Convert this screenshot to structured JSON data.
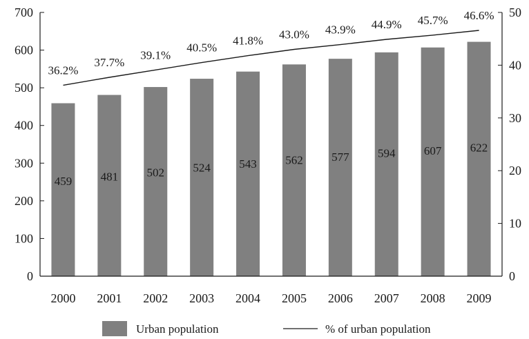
{
  "chart_data": {
    "type": "bar",
    "categories": [
      "2000",
      "2001",
      "2002",
      "2003",
      "2004",
      "2005",
      "2006",
      "2007",
      "2008",
      "2009"
    ],
    "series": [
      {
        "name": "Urban population",
        "type": "bar",
        "axis": "left",
        "values": [
          459,
          481,
          502,
          524,
          543,
          562,
          577,
          594,
          607,
          622
        ],
        "labels": [
          "459",
          "481",
          "502",
          "524",
          "543",
          "562",
          "577",
          "594",
          "607",
          "622"
        ]
      },
      {
        "name": "% of urban population",
        "type": "line",
        "axis": "right",
        "values": [
          36.2,
          37.7,
          39.1,
          40.5,
          41.8,
          43.0,
          43.9,
          44.9,
          45.7,
          46.6
        ],
        "labels": [
          "36.2%",
          "37.7%",
          "39.1%",
          "40.5%",
          "41.8%",
          "43.0%",
          "43.9%",
          "44.9%",
          "45.7%",
          "46.6%"
        ]
      }
    ],
    "y_left": {
      "ylim": [
        0,
        700
      ],
      "ticks": [
        "0",
        "100",
        "200",
        "300",
        "400",
        "500",
        "600",
        "700"
      ]
    },
    "y_right": {
      "ylim": [
        0,
        50
      ],
      "ticks": [
        "0",
        "10",
        "20",
        "30",
        "40",
        "50"
      ]
    },
    "grid": false,
    "legend": {
      "position": "bottom",
      "items": [
        "Urban population",
        "% of urban population"
      ]
    },
    "colors": {
      "bar": "#808080",
      "line": "#1a1a1a",
      "axis": "#1a1a1a"
    }
  }
}
